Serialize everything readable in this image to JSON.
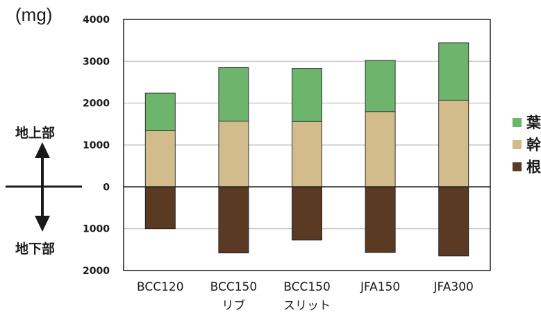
{
  "unit_label": "(mg)",
  "side_labels": {
    "above": "地上部",
    "below": "地下部"
  },
  "chart_data": {
    "type": "bar",
    "stacked": true,
    "categories": [
      "BCC120",
      "BCC150",
      "BCC150",
      "JFA150",
      "JFA300"
    ],
    "category_sublabels": [
      "",
      "リブ",
      "スリット",
      "",
      ""
    ],
    "series": [
      {
        "name": "葉",
        "color": "#6db56d",
        "values": [
          900,
          1280,
          1270,
          1220,
          1370
        ]
      },
      {
        "name": "幹",
        "color": "#d2bc8c",
        "values": [
          1340,
          1570,
          1560,
          1800,
          2070
        ]
      },
      {
        "name": "根",
        "color": "#5b3a24",
        "values": [
          -1000,
          -1580,
          -1270,
          -1570,
          -1650
        ]
      }
    ],
    "yticks": [
      4000,
      3000,
      2000,
      1000,
      0,
      -1000,
      -2000
    ],
    "ytick_labels": [
      "4000",
      "3000",
      "2000",
      "1000",
      "0",
      "1000",
      "2000"
    ],
    "ylim": [
      -2000,
      4000
    ],
    "grid": true,
    "legend_position": "right"
  }
}
